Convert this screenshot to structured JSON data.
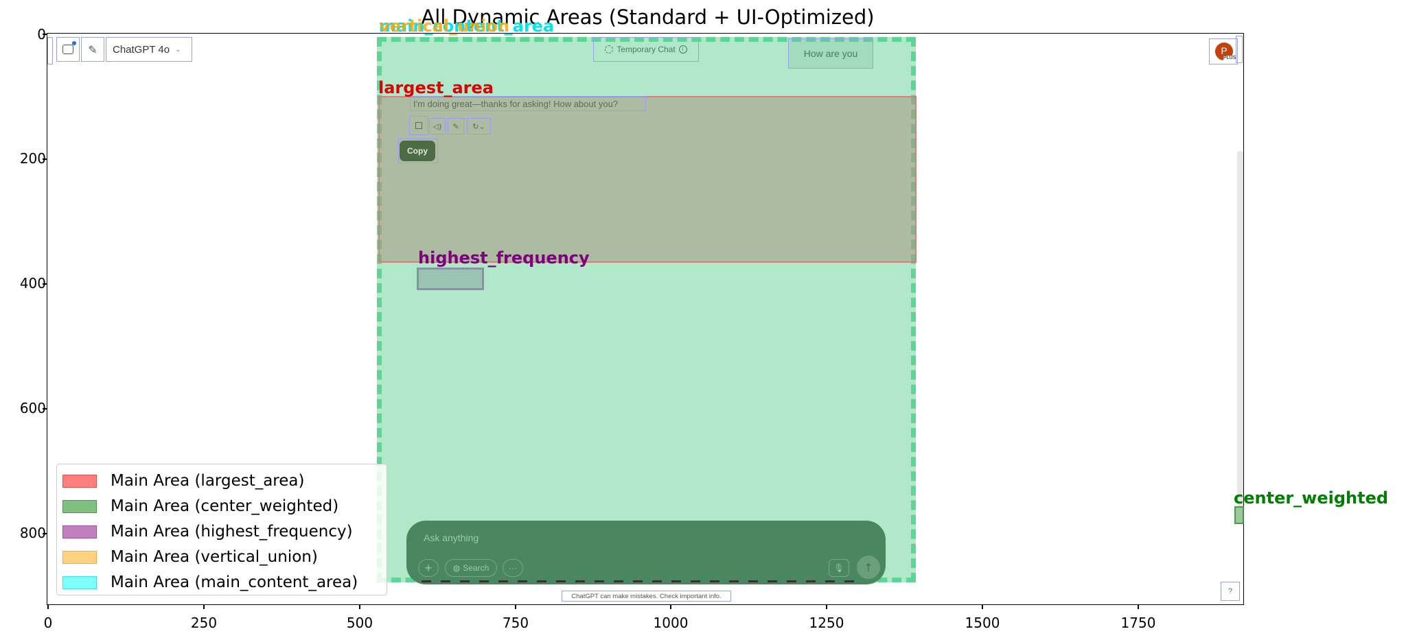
{
  "figure": {
    "title": "All Dynamic Areas (Standard + UI-Optimized)",
    "y_ticks": [
      "0",
      "200",
      "400",
      "600",
      "800"
    ],
    "x_ticks": [
      "0",
      "250",
      "500",
      "750",
      "1000",
      "1250",
      "1500",
      "1750"
    ]
  },
  "screenshot": {
    "model_selector_label": "ChatGPT 4o",
    "temporary_chat_label": "Temporary Chat",
    "user_message": "How are you",
    "assistant_message": "I'm doing great—thanks for asking! How about you?",
    "copy_tooltip": "Copy",
    "composer_placeholder": "Ask anything",
    "search_button_label": "Search",
    "disclaimer": "ChatGPT can make mistakes. Check important info.",
    "help_label": "?",
    "avatar_letter": "P",
    "avatar_badge": "PLUS"
  },
  "overlays": {
    "main_content_area_label": "main_content_area",
    "vertical_union_label": "vertical_union",
    "largest_area_label": "largest_area",
    "highest_frequency_label": "highest_frequency",
    "center_weighted_label": "center_weighted",
    "colors": {
      "largest_area": "#ff0000",
      "center_weighted": "#008000",
      "highest_frequency": "#800080",
      "vertical_union": "#ffa500",
      "main_content_area": "#00ffff"
    }
  },
  "legend": {
    "items": [
      {
        "label": "Main Area (largest_area)",
        "color": "#ff7f7f",
        "border": "#e05050"
      },
      {
        "label": "Main Area (center_weighted)",
        "color": "#80c080",
        "border": "#3f9f3f"
      },
      {
        "label": "Main Area (highest_frequency)",
        "color": "#c080c0",
        "border": "#9f4f9f"
      },
      {
        "label": "Main Area (vertical_union)",
        "color": "#ffd27f",
        "border": "#f0b040"
      },
      {
        "label": "Main Area (main_content_area)",
        "color": "#80ffff",
        "border": "#40e0e0"
      }
    ]
  }
}
